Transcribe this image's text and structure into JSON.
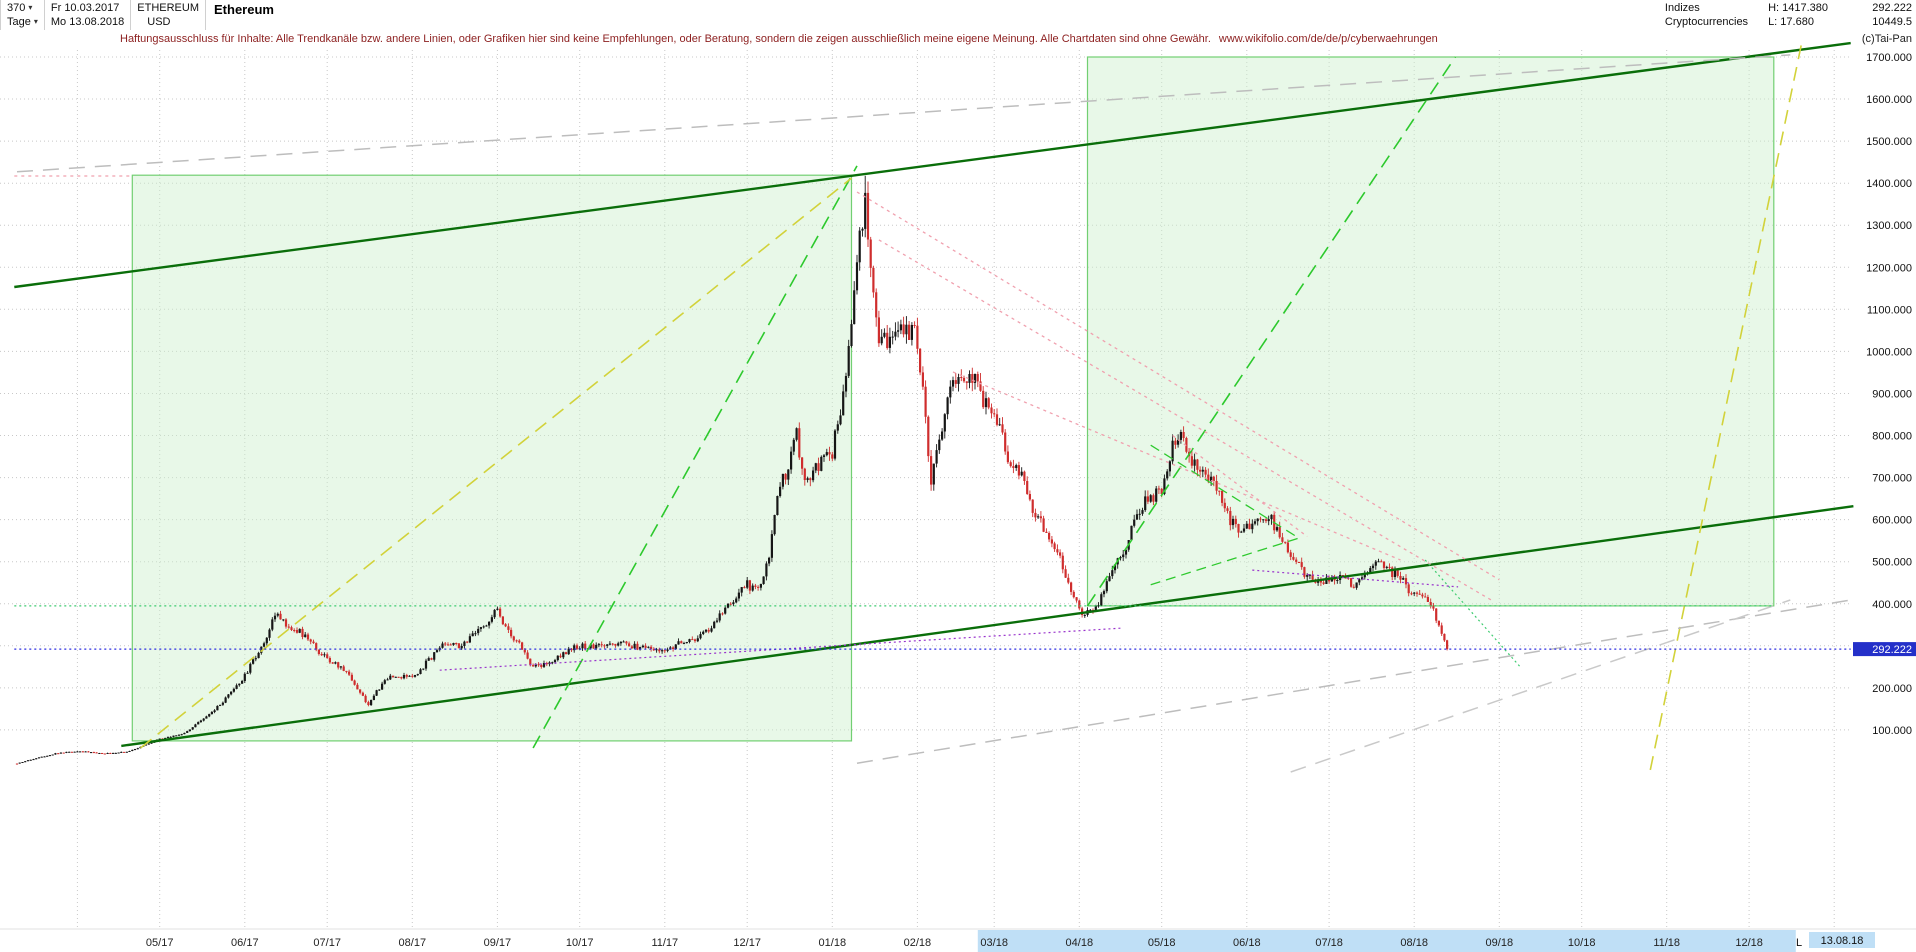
{
  "header": {
    "periods_value": "370",
    "periods_unit": "Tage",
    "dropdown_icon": "▾",
    "date_from": "Fr 10.03.2017",
    "date_to": "Mo 13.08.2018",
    "symbol": "ETHEREUM",
    "currency": "USD",
    "name": "Ethereum",
    "group1": "Indizes",
    "group2": "Cryptocurrencies",
    "high_label": "H: 1417.380",
    "low_label": "L: 17.680",
    "last_price": "292.222",
    "index_value": "10449.5",
    "copyright": "(c)Tai-Pan"
  },
  "disclaimer": {
    "text": "Haftungsausschluss für Inhalte: Alle Trendkanäle bzw. andere Linien, oder Grafiken hier sind keine Empfehlungen, oder Beratung, sondern die zeigen ausschließlich meine eigene Meinung. Alle Chartdaten sind ohne Gewähr.",
    "url": "www.wikifolio.com/de/de/p/cyberwaehrungen"
  },
  "chart_data": {
    "type": "candlestick",
    "instrument": "Ethereum",
    "symbol": "ETHEREUM",
    "currency": "USD",
    "timeframe": "Tage",
    "bars": 370,
    "range": [
      "10.03.2017",
      "13.08.2018"
    ],
    "period_high": 1417.38,
    "period_low": 17.68,
    "last_close": 292.222,
    "last_close_label": "292.222",
    "days_total": 521,
    "y_axis": {
      "min": 100,
      "max": 1700,
      "step": 100,
      "decimals": 3
    },
    "x_axis": {
      "months": [
        {
          "label": "05/17",
          "day": 52
        },
        {
          "label": "06/17",
          "day": 83
        },
        {
          "label": "07/17",
          "day": 113
        },
        {
          "label": "08/17",
          "day": 144
        },
        {
          "label": "09/17",
          "day": 175
        },
        {
          "label": "10/17",
          "day": 205
        },
        {
          "label": "11/17",
          "day": 236
        },
        {
          "label": "12/17",
          "day": 266
        },
        {
          "label": "01/18",
          "day": 297
        },
        {
          "label": "02/18",
          "day": 328
        },
        {
          "label": "03/18",
          "day": 356
        },
        {
          "label": "04/18",
          "day": 387
        },
        {
          "label": "05/18",
          "day": 417
        },
        {
          "label": "06/18",
          "day": 448
        },
        {
          "label": "07/18",
          "day": 478
        },
        {
          "label": "08/18",
          "day": 509
        },
        {
          "label": "09/18",
          "day": 540
        },
        {
          "label": "10/18",
          "day": 570
        },
        {
          "label": "11/18",
          "day": 601
        },
        {
          "label": "12/18",
          "day": 631
        }
      ],
      "extra_gridline_days": [
        22,
        662
      ],
      "highlight": {
        "from_day": 350,
        "to_day": 648
      },
      "end_label": {
        "prefix": "L",
        "text": "13.08.18"
      }
    },
    "anchors": [
      [
        0,
        20
      ],
      [
        8,
        35
      ],
      [
        14,
        44
      ],
      [
        22,
        50
      ],
      [
        32,
        44
      ],
      [
        40,
        48
      ],
      [
        52,
        78
      ],
      [
        60,
        90
      ],
      [
        68,
        125
      ],
      [
        75,
        165
      ],
      [
        83,
        228
      ],
      [
        90,
        310
      ],
      [
        95,
        385
      ],
      [
        98,
        345
      ],
      [
        103,
        335
      ],
      [
        108,
        300
      ],
      [
        113,
        268
      ],
      [
        120,
        240
      ],
      [
        124,
        200
      ],
      [
        128,
        160
      ],
      [
        132,
        200
      ],
      [
        136,
        228
      ],
      [
        144,
        225
      ],
      [
        150,
        265
      ],
      [
        155,
        308
      ],
      [
        162,
        300
      ],
      [
        170,
        345
      ],
      [
        175,
        388
      ],
      [
        179,
        330
      ],
      [
        184,
        295
      ],
      [
        188,
        248
      ],
      [
        193,
        257
      ],
      [
        199,
        283
      ],
      [
        205,
        301
      ],
      [
        212,
        297
      ],
      [
        220,
        305
      ],
      [
        228,
        296
      ],
      [
        236,
        291
      ],
      [
        242,
        308
      ],
      [
        248,
        315
      ],
      [
        255,
        360
      ],
      [
        260,
        400
      ],
      [
        266,
        445
      ],
      [
        270,
        432
      ],
      [
        274,
        512
      ],
      [
        277,
        655
      ],
      [
        281,
        730
      ],
      [
        284,
        800
      ],
      [
        287,
        690
      ],
      [
        290,
        715
      ],
      [
        294,
        745
      ],
      [
        297,
        760
      ],
      [
        301,
        900
      ],
      [
        305,
        1140
      ],
      [
        309,
        1385
      ],
      [
        312,
        1120
      ],
      [
        314,
        1010
      ],
      [
        318,
        1040
      ],
      [
        322,
        1065
      ],
      [
        328,
        1030
      ],
      [
        331,
        840
      ],
      [
        333,
        700
      ],
      [
        337,
        820
      ],
      [
        341,
        920
      ],
      [
        345,
        915
      ],
      [
        348,
        940
      ],
      [
        352,
        880
      ],
      [
        356,
        855
      ],
      [
        361,
        750
      ],
      [
        366,
        700
      ],
      [
        371,
        610
      ],
      [
        377,
        555
      ],
      [
        382,
        470
      ],
      [
        387,
        382
      ],
      [
        390,
        378
      ],
      [
        394,
        400
      ],
      [
        398,
        460
      ],
      [
        403,
        520
      ],
      [
        408,
        615
      ],
      [
        412,
        650
      ],
      [
        417,
        670
      ],
      [
        421,
        780
      ],
      [
        424,
        800
      ],
      [
        428,
        745
      ],
      [
        432,
        710
      ],
      [
        437,
        680
      ],
      [
        441,
        610
      ],
      [
        445,
        575
      ],
      [
        448,
        580
      ],
      [
        452,
        600
      ],
      [
        456,
        612
      ],
      [
        460,
        560
      ],
      [
        464,
        520
      ],
      [
        468,
        480
      ],
      [
        472,
        460
      ],
      [
        478,
        452
      ],
      [
        483,
        465
      ],
      [
        487,
        435
      ],
      [
        491,
        460
      ],
      [
        495,
        500
      ],
      [
        499,
        480
      ],
      [
        503,
        465
      ],
      [
        507,
        435
      ],
      [
        509,
        420
      ],
      [
        512,
        415
      ],
      [
        515,
        400
      ],
      [
        517,
        365
      ],
      [
        519,
        330
      ],
      [
        521,
        292.222
      ]
    ]
  },
  "overlays": {
    "box_fill": "#cdf0cd",
    "box_stroke": "#72cf72",
    "boxes": [
      {
        "name": "trend-channel-box-2017",
        "day": [
          42,
          304
        ],
        "price": [
          74,
          1419
        ]
      },
      {
        "name": "trend-channel-box-2018",
        "day": [
          390,
          640
        ],
        "price": [
          395,
          1700
        ]
      }
    ],
    "lines": [
      {
        "name": "main-uptrend-resistance",
        "color": "#0a6e0a",
        "width": 2.4,
        "dash": "",
        "pts": [
          [
            -1,
            1153
          ],
          [
            668,
            1733
          ]
        ]
      },
      {
        "name": "main-uptrend-support",
        "color": "#0a6e0a",
        "width": 2.4,
        "dash": "",
        "pts": [
          [
            38,
            62
          ],
          [
            669,
            632
          ]
        ]
      },
      {
        "name": "accel-uptrend-2017-green",
        "color": "#2dc92d",
        "width": 1.6,
        "dash": "14 8",
        "pts": [
          [
            188,
            57
          ],
          [
            306,
            1441
          ]
        ]
      },
      {
        "name": "accel-uptrend-2018-green",
        "color": "#2dc92d",
        "width": 1.6,
        "dash": "14 8",
        "pts": [
          [
            390,
            395
          ],
          [
            524,
            1700
          ]
        ]
      },
      {
        "name": "uptrend-2017-yellow",
        "color": "#d2d23a",
        "width": 1.6,
        "dash": "14 8",
        "pts": [
          [
            45,
            57
          ],
          [
            304,
            1412
          ]
        ]
      },
      {
        "name": "steep-projection-yellow",
        "color": "#d2d23a",
        "width": 1.6,
        "dash": "14 8",
        "pts": [
          [
            595,
            5
          ],
          [
            650,
            1729
          ]
        ]
      },
      {
        "name": "longterm-resistance-gray",
        "color": "#bdbdbd",
        "width": 1.5,
        "dash": "16 10",
        "pts": [
          [
            0,
            1427
          ],
          [
            646,
            1705
          ]
        ]
      },
      {
        "name": "longterm-support-gray-1",
        "color": "#bdbdbd",
        "width": 1.5,
        "dash": "16 10",
        "pts": [
          [
            306,
            21
          ],
          [
            668,
            409
          ]
        ]
      },
      {
        "name": "longterm-support-gray-2",
        "color": "#c9c9c9",
        "width": 1.5,
        "dash": "16 10",
        "pts": [
          [
            464,
            0
          ],
          [
            646,
            409
          ]
        ]
      },
      {
        "name": "downtrend-pink-1",
        "color": "#f0a0ae",
        "width": 1.3,
        "dash": "3 4",
        "pts": [
          [
            306,
            1379
          ],
          [
            540,
            457
          ]
        ]
      },
      {
        "name": "downtrend-pink-2",
        "color": "#f0a0ae",
        "width": 1.3,
        "dash": "3 4",
        "pts": [
          [
            314,
            1265
          ],
          [
            537,
            409
          ]
        ]
      },
      {
        "name": "downtrend-pink-3",
        "color": "#f0a0ae",
        "width": 1.3,
        "dash": "3 4",
        "pts": [
          [
            341,
            951
          ],
          [
            504,
            504
          ]
        ]
      },
      {
        "name": "downtrend-pink-4",
        "color": "#f0a0ae",
        "width": 1.3,
        "dash": "3 4",
        "pts": [
          [
            421,
            800
          ],
          [
            470,
            560
          ]
        ]
      },
      {
        "name": "ath-level-pink",
        "color": "#f0a0ae",
        "width": 1.3,
        "dash": "3 4",
        "pts": [
          [
            -1,
            1417
          ],
          [
            42,
            1417
          ]
        ]
      },
      {
        "name": "pennant-upper-green",
        "color": "#2dc92d",
        "width": 1.3,
        "dash": "10 6",
        "pts": [
          [
            413,
            777
          ],
          [
            467,
            556
          ]
        ]
      },
      {
        "name": "pennant-lower-green",
        "color": "#2dc92d",
        "width": 1.3,
        "dash": "10 6",
        "pts": [
          [
            413,
            445
          ],
          [
            467,
            556
          ]
        ]
      },
      {
        "name": "support-level-green-dotted",
        "color": "#3ecc70",
        "width": 1.2,
        "dash": "2 3",
        "pts": [
          [
            -1,
            395
          ],
          [
            640,
            395
          ]
        ]
      },
      {
        "name": "breakdown-projection-green",
        "color": "#3ecc70",
        "width": 1.2,
        "dash": "2 3",
        "pts": [
          [
            513,
            504
          ],
          [
            548,
            247
          ]
        ]
      },
      {
        "name": "minor-support-purple-1",
        "color": "#9933cc",
        "width": 1.2,
        "dash": "2 3",
        "pts": [
          [
            154,
            242
          ],
          [
            402,
            342
          ]
        ]
      },
      {
        "name": "minor-support-purple-2",
        "color": "#9933cc",
        "width": 1.2,
        "dash": "2 3",
        "pts": [
          [
            450,
            480
          ],
          [
            525,
            440
          ]
        ]
      },
      {
        "name": "current-price-line-blue",
        "color": "#2e2ee0",
        "width": 1.3,
        "dash": "2 3",
        "pts": [
          [
            -1,
            292.222
          ],
          [
            668,
            292.222
          ]
        ]
      }
    ]
  }
}
